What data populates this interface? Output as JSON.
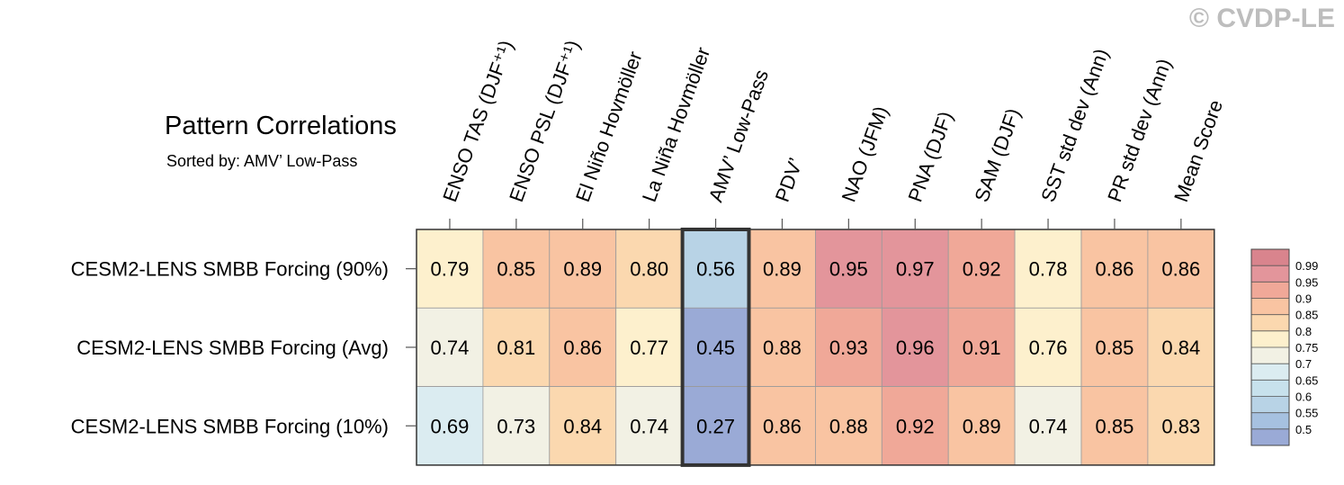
{
  "watermark": "© CVDP-LE",
  "chart_data": {
    "type": "heatmap",
    "title": "Pattern Correlations",
    "subtitle": "Sorted by: AMV’ Low-Pass",
    "highlighted_column": "AMV’ Low-Pass",
    "columns": [
      "ENSO TAS (DJF⁺¹)",
      "ENSO PSL (DJF⁺¹)",
      "El Niño Hovmöller",
      "La Niña Hovmöller",
      "AMV’ Low-Pass",
      "PDV’",
      "NAO (JFM)",
      "PNA (DJF)",
      "SAM (DJF)",
      "SST std dev (Ann)",
      "PR std dev (Ann)",
      "Mean Score"
    ],
    "rows": [
      "CESM2-LENS SMBB Forcing (90%)",
      "CESM2-LENS SMBB Forcing (Avg)",
      "CESM2-LENS SMBB Forcing (10%)"
    ],
    "values": [
      [
        "0.79",
        "0.85",
        "0.89",
        "0.80",
        "0.56",
        "0.89",
        "0.95",
        "0.97",
        "0.92",
        "0.78",
        "0.86",
        "0.86"
      ],
      [
        "0.74",
        "0.81",
        "0.86",
        "0.77",
        "0.45",
        "0.88",
        "0.93",
        "0.96",
        "0.91",
        "0.76",
        "0.85",
        "0.84"
      ],
      [
        "0.69",
        "0.73",
        "0.84",
        "0.74",
        "0.27",
        "0.86",
        "0.88",
        "0.92",
        "0.89",
        "0.74",
        "0.85",
        "0.83"
      ]
    ],
    "colorbar": {
      "labels": [
        "0.99",
        "0.95",
        "0.9",
        "0.85",
        "0.8",
        "0.75",
        "0.7",
        "0.65",
        "0.6",
        "0.55",
        "0.5"
      ],
      "bins": [
        {
          "min": 0.99,
          "color": "#d9848d"
        },
        {
          "min": 0.95,
          "color": "#e3959b"
        },
        {
          "min": 0.9,
          "color": "#f0a898"
        },
        {
          "min": 0.85,
          "color": "#f9c4a2"
        },
        {
          "min": 0.8,
          "color": "#fbd8af"
        },
        {
          "min": 0.75,
          "color": "#fdf0cd"
        },
        {
          "min": 0.7,
          "color": "#f2f1e4"
        },
        {
          "min": 0.65,
          "color": "#dbecf1"
        },
        {
          "min": 0.6,
          "color": "#c7e1ec"
        },
        {
          "min": 0.55,
          "color": "#b8d3e6"
        },
        {
          "min": 0.5,
          "color": "#a6c1e0"
        },
        {
          "min": -1.0,
          "color": "#9aaad6"
        }
      ]
    }
  }
}
